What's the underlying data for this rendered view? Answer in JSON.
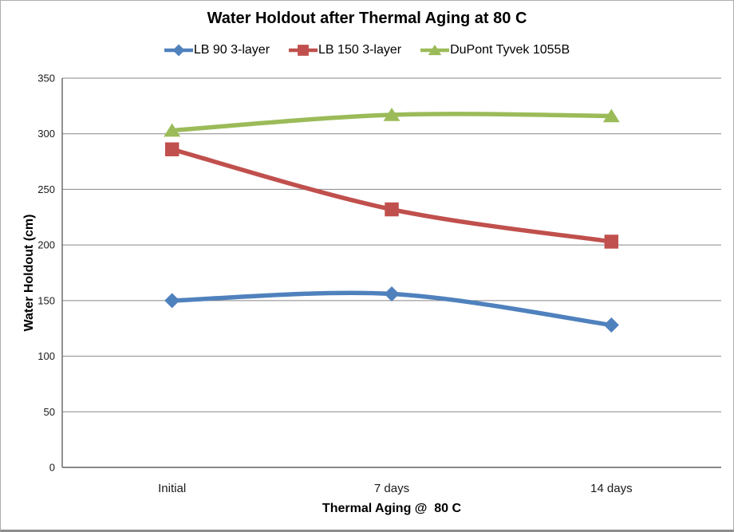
{
  "window": {
    "background": "#ffffff",
    "border_color": "#aeaeae"
  },
  "chart_data": {
    "type": "line",
    "title": "Water Holdout after Thermal Aging at 80 C",
    "xlabel": "Thermal Aging @  80 C",
    "ylabel": "Water Holdout (cm)",
    "categories": [
      "Initial",
      "7 days",
      "14 days"
    ],
    "series": [
      {
        "name": "LB 90 3-layer",
        "color": "#4F81BD",
        "marker": "diamond",
        "values": [
          150,
          156,
          128
        ]
      },
      {
        "name": "LB 150 3-layer",
        "color": "#C0504D",
        "marker": "square",
        "values": [
          286,
          232,
          203
        ]
      },
      {
        "name": "DuPont Tyvek 1055B",
        "color": "#9BBB59",
        "marker": "triangle",
        "values": [
          303,
          317,
          316
        ]
      }
    ],
    "ylim": [
      0,
      350
    ],
    "yticks": [
      0,
      50,
      100,
      150,
      200,
      250,
      300,
      350
    ],
    "grid": true,
    "smoothed_lines": true,
    "legend_position": "top",
    "gridline_color": "#878787",
    "axis_color": "#626262",
    "tick_label_color": "#1a1a1a"
  }
}
